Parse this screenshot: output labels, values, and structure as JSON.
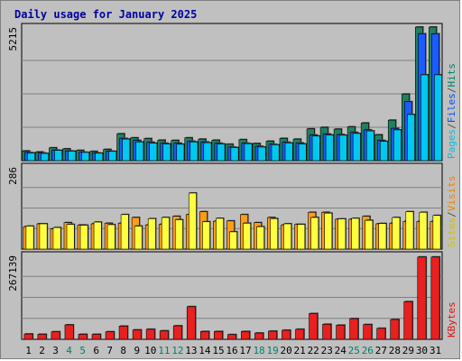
{
  "chart_data": {
    "type": "bar",
    "title": "Daily usage for January 2025",
    "categories": [
      "1",
      "2",
      "3",
      "4",
      "5",
      "6",
      "7",
      "8",
      "9",
      "10",
      "11",
      "12",
      "13",
      "14",
      "15",
      "16",
      "17",
      "18",
      "19",
      "20",
      "21",
      "22",
      "23",
      "24",
      "25",
      "26",
      "27",
      "28",
      "29",
      "30",
      "31"
    ],
    "weekend_days": [
      "4",
      "5",
      "11",
      "12",
      "18",
      "19",
      "25",
      "26"
    ],
    "panels": [
      {
        "id": "top",
        "ymax_label": "5215",
        "ylim": [
          0,
          5215
        ],
        "grid": true,
        "legend": [
          "Pages",
          "/",
          "Files",
          "/",
          "Hits"
        ],
        "legend_colors": [
          "#00c0e0",
          "#505050",
          "#0050ff",
          "#505050",
          "#00806a"
        ],
        "series": [
          {
            "name": "Hits",
            "color": "#208060",
            "values": [
              380,
              340,
              500,
              460,
              400,
              360,
              440,
              1050,
              890,
              860,
              800,
              790,
              890,
              840,
              800,
              640,
              820,
              670,
              760,
              870,
              840,
              1240,
              1300,
              1230,
              1320,
              1470,
              1010,
              1580,
              2600,
              5215,
              5215
            ]
          },
          {
            "name": "Files",
            "color": "#1b5cff",
            "values": [
              320,
              300,
              410,
              380,
              330,
              300,
              370,
              870,
              790,
              720,
              680,
              680,
              760,
              730,
              680,
              530,
              680,
              560,
              640,
              720,
              690,
              1000,
              1040,
              1020,
              1100,
              1200,
              790,
              1260,
              2300,
              4950,
              4950
            ]
          },
          {
            "name": "Pages",
            "color": "#00c8f0",
            "values": [
              300,
              280,
              400,
              370,
              320,
              290,
              360,
              840,
              730,
              680,
              650,
              640,
              730,
              700,
              650,
              510,
              660,
              530,
              620,
              690,
              650,
              960,
              1000,
              990,
              1060,
              1160,
              750,
              1200,
              1800,
              3350,
              3350
            ]
          }
        ]
      },
      {
        "id": "middle",
        "ymax_label": "286",
        "ylim": [
          0,
          286
        ],
        "grid": true,
        "legend": [
          "Sites",
          "/",
          "Visits"
        ],
        "legend_colors": [
          "#d0c000",
          "#505050",
          "#f08000"
        ],
        "series": [
          {
            "name": "Visits",
            "color": "#ff9d16",
            "values": [
              78,
              88,
              70,
              92,
              84,
              88,
              90,
              90,
              110,
              84,
              86,
              114,
              120,
              130,
              97,
              98,
              120,
              92,
              110,
              84,
              86,
              128,
              128,
              104,
              104,
              114,
              88,
              90,
              96,
              96,
              96
            ]
          },
          {
            "name": "Sites",
            "color": "#ffff40",
            "values": [
              80,
              88,
              75,
              86,
              83,
              94,
              85,
              120,
              80,
              106,
              110,
              102,
              195,
              95,
              107,
              60,
              90,
              78,
              106,
              88,
              86,
              110,
              125,
              105,
              107,
              100,
              89,
              110,
              130,
              128,
              117
            ]
          }
        ]
      },
      {
        "id": "bottom",
        "ymax_label": "267139",
        "ylim": [
          0,
          267139
        ],
        "grid": true,
        "legend": [
          "KBytes"
        ],
        "legend_colors": [
          "#e01010"
        ],
        "series": [
          {
            "name": "KBytes",
            "color": "#e82020",
            "values": [
              17000,
              16000,
              24000,
              46000,
              16000,
              16000,
              24000,
              42000,
              30000,
              32000,
              27000,
              43000,
              104000,
              25000,
              25000,
              15000,
              25000,
              20000,
              26000,
              29000,
              32000,
              82000,
              48000,
              45000,
              66000,
              47000,
              35000,
              63000,
              120000,
              262000,
              262000
            ]
          }
        ]
      }
    ]
  }
}
